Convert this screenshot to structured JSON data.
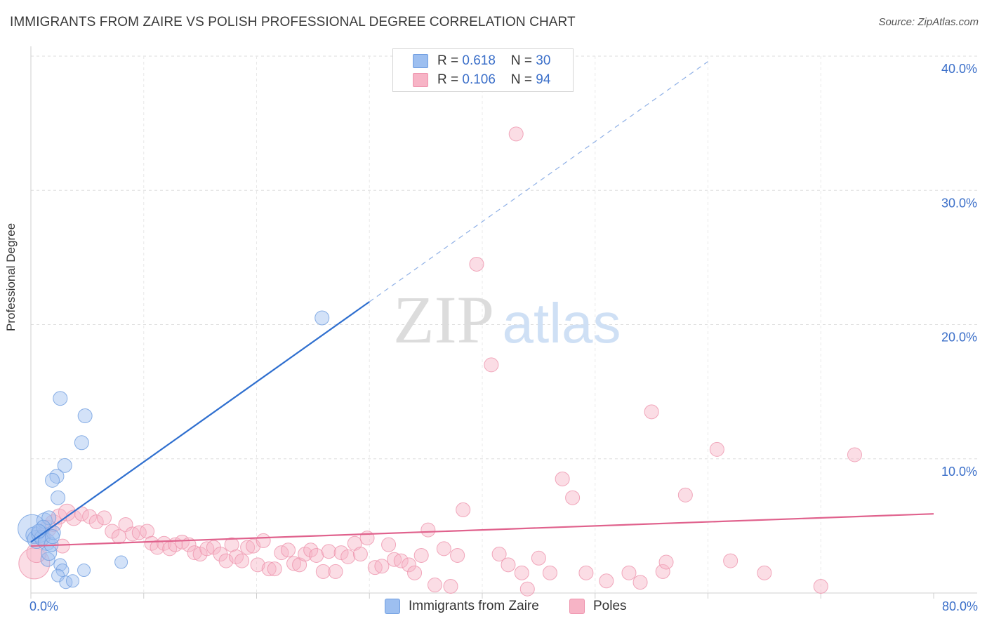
{
  "header": {
    "title": "IMMIGRANTS FROM ZAIRE VS POLISH PROFESSIONAL DEGREE CORRELATION CHART",
    "source": "Source: ZipAtlas.com"
  },
  "legend": {
    "series1": {
      "r_label": "R = ",
      "r_value": "0.618",
      "n_label": "N = ",
      "n_value": "30",
      "color": "#9dbff0"
    },
    "series2": {
      "r_label": "R = ",
      "r_value": "0.106",
      "n_label": "N = ",
      "n_value": "94",
      "color": "#f7b4c6"
    }
  },
  "watermark": {
    "zip": "ZIP",
    "atlas": "atlas"
  },
  "chart_data": {
    "type": "scatter",
    "title": "IMMIGRANTS FROM ZAIRE VS POLISH PROFESSIONAL DEGREE CORRELATION CHART",
    "xlabel": "",
    "ylabel": "Professional Degree",
    "xlim": [
      0,
      80
    ],
    "ylim": [
      0,
      40
    ],
    "x_tick_labels": [
      "0.0%",
      "80.0%"
    ],
    "y_ticks": [
      10,
      20,
      30,
      40
    ],
    "y_tick_labels": [
      "10.0%",
      "20.0%",
      "30.0%",
      "40.0%"
    ],
    "grid": true,
    "series": [
      {
        "name": "Immigrants from Zaire",
        "color": "#9dbff0",
        "edge": "#6f9de0",
        "trend": {
          "x0": 0,
          "y0": 3.8,
          "x1": 30,
          "y1": 21.7,
          "dash_to_x": 60,
          "dash_to_y": 39.6,
          "color": "#2f6fcf"
        },
        "points": [
          [
            0.1,
            4.8,
            20
          ],
          [
            0.3,
            4.3,
            12
          ],
          [
            0.5,
            4.0,
            13
          ],
          [
            0.8,
            4.4,
            12
          ],
          [
            1.0,
            4.1,
            11
          ],
          [
            1.2,
            5.4,
            11
          ],
          [
            1.4,
            3.8,
            12
          ],
          [
            1.5,
            2.5,
            10
          ],
          [
            1.6,
            3.0,
            11
          ],
          [
            1.8,
            3.6,
            10
          ],
          [
            2.0,
            4.5,
            10
          ],
          [
            1.6,
            5.6,
            10
          ],
          [
            2.6,
            14.5,
            10
          ],
          [
            4.8,
            13.2,
            10
          ],
          [
            4.5,
            11.2,
            10
          ],
          [
            3.0,
            9.5,
            10
          ],
          [
            2.3,
            8.7,
            10
          ],
          [
            1.9,
            8.4,
            10
          ],
          [
            2.4,
            7.1,
            10
          ],
          [
            2.6,
            2.1,
            9
          ],
          [
            2.8,
            1.7,
            9
          ],
          [
            2.4,
            1.3,
            9
          ],
          [
            3.1,
            0.8,
            9
          ],
          [
            3.7,
            0.9,
            9
          ],
          [
            4.7,
            1.7,
            9
          ],
          [
            8.0,
            2.3,
            9
          ],
          [
            25.8,
            20.5,
            10
          ],
          [
            1.1,
            4.9,
            10
          ],
          [
            0.7,
            4.6,
            10
          ],
          [
            1.9,
            4.2,
            10
          ]
        ]
      },
      {
        "name": "Poles",
        "color": "#f7b4c6",
        "edge": "#ee93ad",
        "trend": {
          "x0": 0,
          "y0": 3.5,
          "x1": 80,
          "y1": 5.9,
          "color": "#e0628d"
        },
        "points": [
          [
            0.3,
            2.2,
            22
          ],
          [
            0.5,
            3.0,
            14
          ],
          [
            1.0,
            4.2,
            12
          ],
          [
            1.5,
            4.8,
            12
          ],
          [
            2.0,
            5.2,
            12
          ],
          [
            2.5,
            5.7,
            11
          ],
          [
            3.2,
            6.0,
            12
          ],
          [
            3.8,
            5.6,
            11
          ],
          [
            4.5,
            5.9,
            10
          ],
          [
            5.2,
            5.7,
            10
          ],
          [
            5.8,
            5.3,
            10
          ],
          [
            6.5,
            5.6,
            10
          ],
          [
            7.2,
            4.6,
            10
          ],
          [
            7.8,
            4.2,
            10
          ],
          [
            8.4,
            5.1,
            10
          ],
          [
            9.0,
            4.4,
            10
          ],
          [
            9.6,
            4.5,
            10
          ],
          [
            10.3,
            4.6,
            10
          ],
          [
            10.7,
            3.7,
            10
          ],
          [
            11.2,
            3.4,
            10
          ],
          [
            11.8,
            3.7,
            10
          ],
          [
            12.3,
            3.3,
            10
          ],
          [
            12.8,
            3.6,
            10
          ],
          [
            13.4,
            3.8,
            10
          ],
          [
            14.0,
            3.6,
            10
          ],
          [
            14.5,
            3.0,
            10
          ],
          [
            15.0,
            2.9,
            10
          ],
          [
            15.6,
            3.3,
            10
          ],
          [
            16.2,
            3.4,
            10
          ],
          [
            16.8,
            2.9,
            10
          ],
          [
            17.3,
            2.4,
            10
          ],
          [
            17.8,
            3.6,
            10
          ],
          [
            18.2,
            2.7,
            10
          ],
          [
            18.7,
            2.4,
            10
          ],
          [
            19.2,
            3.4,
            10
          ],
          [
            19.7,
            3.5,
            10
          ],
          [
            20.1,
            2.1,
            10
          ],
          [
            20.6,
            3.9,
            10
          ],
          [
            21.1,
            1.8,
            10
          ],
          [
            21.6,
            1.8,
            10
          ],
          [
            22.2,
            3.0,
            10
          ],
          [
            22.8,
            3.2,
            10
          ],
          [
            23.3,
            2.2,
            10
          ],
          [
            23.8,
            2.1,
            10
          ],
          [
            24.3,
            2.9,
            10
          ],
          [
            24.8,
            3.2,
            10
          ],
          [
            25.3,
            2.8,
            10
          ],
          [
            25.9,
            1.6,
            10
          ],
          [
            26.4,
            3.1,
            10
          ],
          [
            27.0,
            1.6,
            10
          ],
          [
            27.5,
            3.0,
            10
          ],
          [
            28.1,
            2.7,
            10
          ],
          [
            28.7,
            3.7,
            10
          ],
          [
            29.2,
            2.9,
            10
          ],
          [
            29.8,
            4.1,
            10
          ],
          [
            30.5,
            1.9,
            10
          ],
          [
            31.1,
            2.0,
            10
          ],
          [
            31.7,
            3.6,
            10
          ],
          [
            32.2,
            2.5,
            10
          ],
          [
            32.8,
            2.4,
            10
          ],
          [
            33.5,
            2.1,
            10
          ],
          [
            34.0,
            1.5,
            10
          ],
          [
            34.6,
            2.8,
            10
          ],
          [
            35.2,
            4.7,
            10
          ],
          [
            35.8,
            0.6,
            10
          ],
          [
            36.6,
            3.3,
            10
          ],
          [
            37.2,
            0.5,
            10
          ],
          [
            37.8,
            2.8,
            10
          ],
          [
            38.3,
            6.2,
            10
          ],
          [
            39.5,
            24.5,
            10
          ],
          [
            40.8,
            17.0,
            10
          ],
          [
            41.5,
            2.9,
            10
          ],
          [
            42.3,
            2.1,
            10
          ],
          [
            43.0,
            34.2,
            10
          ],
          [
            43.5,
            1.5,
            10
          ],
          [
            44.0,
            0.3,
            10
          ],
          [
            45.0,
            2.6,
            10
          ],
          [
            46.0,
            1.5,
            10
          ],
          [
            47.1,
            8.5,
            10
          ],
          [
            48.0,
            7.1,
            10
          ],
          [
            49.2,
            1.5,
            10
          ],
          [
            51.0,
            0.9,
            10
          ],
          [
            53.0,
            1.5,
            10
          ],
          [
            54.0,
            0.8,
            10
          ],
          [
            55.0,
            13.5,
            10
          ],
          [
            56.0,
            1.6,
            10
          ],
          [
            56.3,
            2.3,
            10
          ],
          [
            58.0,
            7.3,
            10
          ],
          [
            60.8,
            10.7,
            10
          ],
          [
            62.0,
            2.4,
            10
          ],
          [
            65.0,
            1.5,
            10
          ],
          [
            70.0,
            0.5,
            10
          ],
          [
            73.0,
            10.3,
            10
          ],
          [
            2.8,
            3.5,
            10
          ]
        ]
      }
    ]
  },
  "bottom_legend": {
    "item1": {
      "label": "Immigrants from Zaire",
      "color": "#9dbff0"
    },
    "item2": {
      "label": "Poles",
      "color": "#f7b4c6"
    }
  }
}
